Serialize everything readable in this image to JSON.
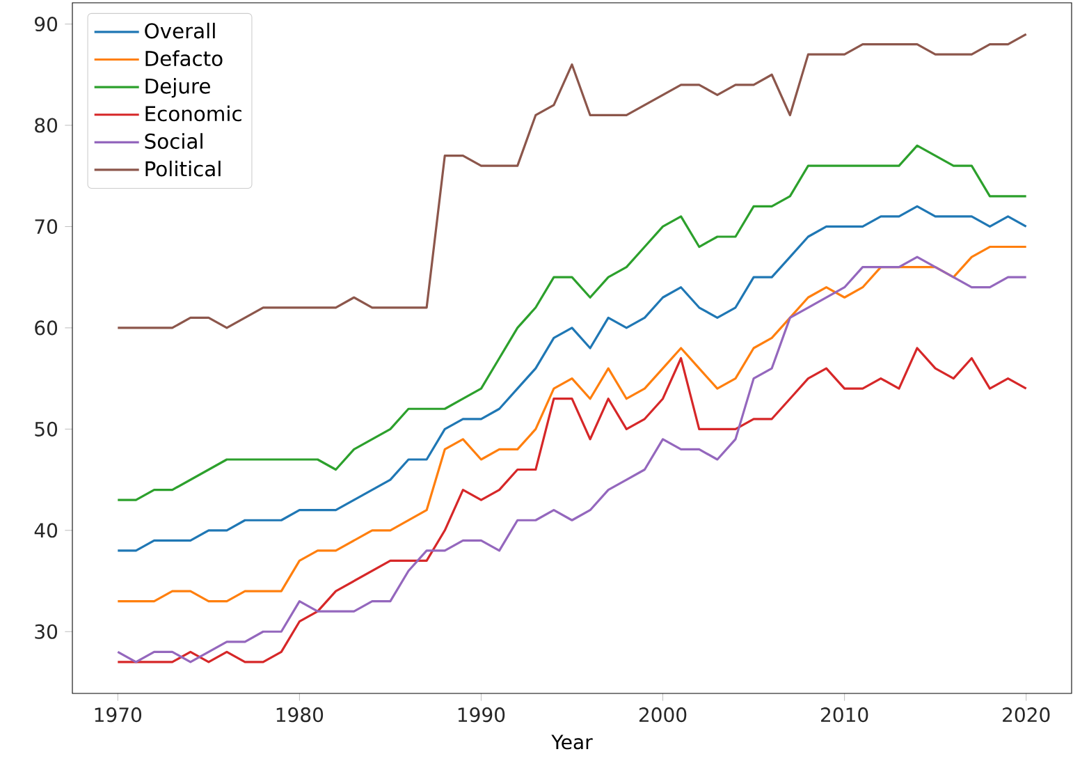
{
  "chart_data": {
    "type": "line",
    "xlabel": "Year",
    "x": [
      1970,
      1971,
      1972,
      1973,
      1974,
      1975,
      1976,
      1977,
      1978,
      1979,
      1980,
      1981,
      1982,
      1983,
      1984,
      1985,
      1986,
      1987,
      1988,
      1989,
      1990,
      1991,
      1992,
      1993,
      1994,
      1995,
      1996,
      1997,
      1998,
      1999,
      2000,
      2001,
      2002,
      2003,
      2004,
      2005,
      2006,
      2007,
      2008,
      2009,
      2010,
      2011,
      2012,
      2013,
      2014,
      2015,
      2016,
      2017,
      2018,
      2019,
      2020
    ],
    "series": [
      {
        "name": "Overall",
        "color": "#1f77b4",
        "values": [
          38,
          38,
          39,
          39,
          39,
          40,
          40,
          41,
          41,
          41,
          42,
          42,
          42,
          43,
          44,
          45,
          47,
          47,
          50,
          51,
          51,
          52,
          54,
          56,
          59,
          60,
          58,
          61,
          60,
          61,
          63,
          64,
          62,
          61,
          62,
          65,
          65,
          67,
          69,
          70,
          70,
          70,
          71,
          71,
          72,
          71,
          71,
          71,
          70,
          71,
          70
        ]
      },
      {
        "name": "Defacto",
        "color": "#ff7f0e",
        "values": [
          33,
          33,
          33,
          34,
          34,
          33,
          33,
          34,
          34,
          34,
          37,
          38,
          38,
          39,
          40,
          40,
          41,
          42,
          48,
          49,
          47,
          48,
          48,
          50,
          54,
          55,
          53,
          56,
          53,
          54,
          56,
          58,
          56,
          54,
          55,
          58,
          59,
          61,
          63,
          64,
          63,
          64,
          66,
          66,
          66,
          66,
          65,
          67,
          68,
          68,
          68
        ]
      },
      {
        "name": "Dejure",
        "color": "#2ca02c",
        "values": [
          43,
          43,
          44,
          44,
          45,
          46,
          47,
          47,
          47,
          47,
          47,
          47,
          46,
          48,
          49,
          50,
          52,
          52,
          52,
          53,
          54,
          57,
          60,
          62,
          65,
          65,
          63,
          65,
          66,
          68,
          70,
          71,
          68,
          69,
          69,
          72,
          72,
          73,
          76,
          76,
          76,
          76,
          76,
          76,
          78,
          77,
          76,
          76,
          73,
          73,
          73
        ]
      },
      {
        "name": "Economic",
        "color": "#d62728",
        "values": [
          27,
          27,
          27,
          27,
          28,
          27,
          28,
          27,
          27,
          28,
          31,
          32,
          34,
          35,
          36,
          37,
          37,
          37,
          40,
          44,
          43,
          44,
          46,
          46,
          53,
          53,
          49,
          53,
          50,
          51,
          53,
          57,
          50,
          50,
          50,
          51,
          51,
          53,
          55,
          56,
          54,
          54,
          55,
          54,
          58,
          56,
          55,
          57,
          54,
          55,
          54
        ]
      },
      {
        "name": "Social",
        "color": "#9467bd",
        "values": [
          28,
          27,
          28,
          28,
          27,
          28,
          29,
          29,
          30,
          30,
          33,
          32,
          32,
          32,
          33,
          33,
          36,
          38,
          38,
          39,
          39,
          38,
          41,
          41,
          42,
          41,
          42,
          44,
          45,
          46,
          49,
          48,
          48,
          47,
          49,
          55,
          56,
          61,
          62,
          63,
          64,
          66,
          66,
          66,
          67,
          66,
          65,
          64,
          64,
          65,
          65
        ]
      },
      {
        "name": "Political",
        "color": "#8c564b",
        "values": [
          60,
          60,
          60,
          60,
          61,
          61,
          60,
          61,
          62,
          62,
          62,
          62,
          62,
          63,
          62,
          62,
          62,
          62,
          77,
          77,
          76,
          76,
          76,
          81,
          82,
          86,
          81,
          81,
          81,
          82,
          83,
          84,
          84,
          83,
          84,
          84,
          85,
          81,
          87,
          87,
          87,
          88,
          88,
          88,
          88,
          87,
          87,
          87,
          88,
          88,
          89
        ]
      }
    ],
    "xlim": [
      1967.5,
      2022.5
    ],
    "ylim": [
      23.9,
      92.1
    ],
    "xticks": [
      1970,
      1980,
      1990,
      2000,
      2010,
      2020
    ],
    "yticks": [
      30,
      40,
      50,
      60,
      70,
      80,
      90
    ],
    "legend": "top left",
    "grid": false,
    "marker": "none",
    "line_style": "solid"
  }
}
